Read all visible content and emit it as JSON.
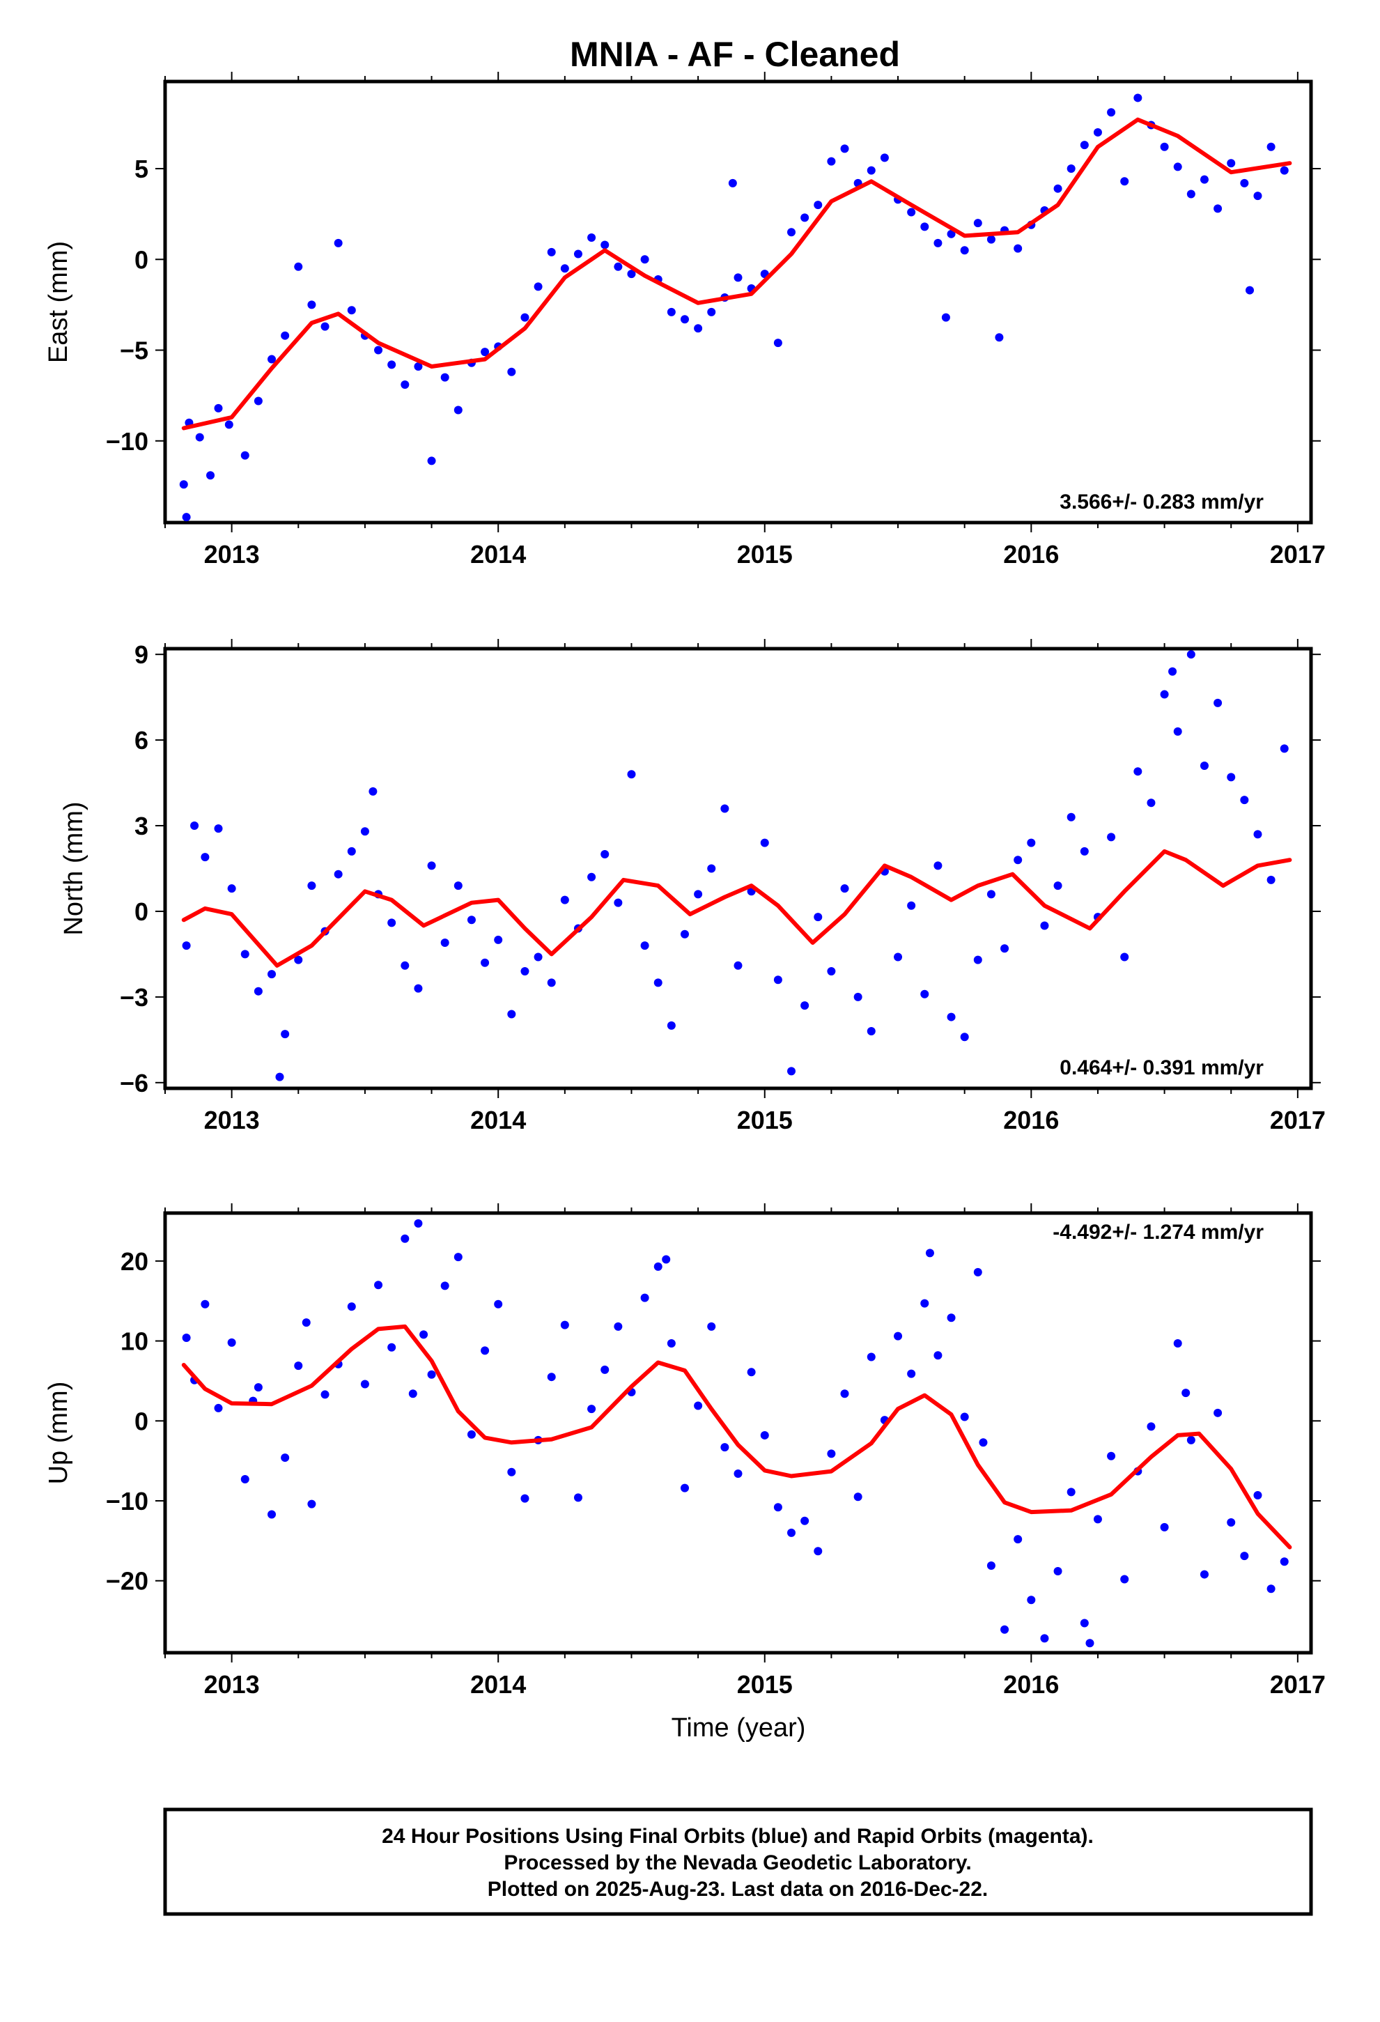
{
  "title": "MNIA  - AF - Cleaned",
  "xlabel": "Time (year)",
  "footer": {
    "line1": "24 Hour Positions Using Final Orbits (blue) and Rapid Orbits (magenta).",
    "line2": "Processed by the Nevada Geodetic Laboratory.",
    "line3": "Plotted on 2025-Aug-23. Last data on 2016-Dec-22."
  },
  "colors": {
    "points": "#0000ff",
    "fit": "#ff0000",
    "frame": "#000000"
  },
  "chart_data": [
    {
      "type": "scatter",
      "ylabel": "East (mm)",
      "rate": "3.566+/- 0.283 mm/yr",
      "xlim": [
        2012.75,
        2017.05
      ],
      "ylim": [
        -14.5,
        9.8
      ],
      "xticks": [
        2013,
        2014,
        2015,
        2016,
        2017
      ],
      "yticks": [
        -10,
        -5,
        0,
        5
      ],
      "ytick_labels": [
        "−10",
        "−5",
        "0",
        "5"
      ],
      "fit_curve": {
        "x": [
          2012.82,
          2013.0,
          2013.15,
          2013.3,
          2013.4,
          2013.55,
          2013.75,
          2013.95,
          2014.1,
          2014.25,
          2014.4,
          2014.55,
          2014.75,
          2014.95,
          2015.1,
          2015.25,
          2015.4,
          2015.55,
          2015.75,
          2015.95,
          2016.1,
          2016.25,
          2016.4,
          2016.55,
          2016.75,
          2016.97
        ],
        "y": [
          -9.3,
          -8.7,
          -6.0,
          -3.5,
          -3.0,
          -4.6,
          -5.9,
          -5.5,
          -3.8,
          -1.0,
          0.5,
          -0.9,
          -2.4,
          -1.9,
          0.3,
          3.2,
          4.3,
          3.0,
          1.3,
          1.5,
          3.0,
          6.2,
          7.7,
          6.8,
          4.8,
          5.3
        ]
      },
      "points": {
        "x": [
          2012.82,
          2012.83,
          2012.84,
          2012.88,
          2012.92,
          2012.95,
          2012.99,
          2013.05,
          2013.1,
          2013.15,
          2013.2,
          2013.25,
          2013.3,
          2013.35,
          2013.4,
          2013.45,
          2013.5,
          2013.55,
          2013.6,
          2013.65,
          2013.7,
          2013.75,
          2013.8,
          2013.85,
          2013.9,
          2013.95,
          2014.0,
          2014.05,
          2014.1,
          2014.15,
          2014.2,
          2014.25,
          2014.3,
          2014.35,
          2014.4,
          2014.45,
          2014.5,
          2014.55,
          2014.6,
          2014.65,
          2014.7,
          2014.75,
          2014.8,
          2014.85,
          2014.88,
          2014.9,
          2014.95,
          2015.0,
          2015.05,
          2015.1,
          2015.15,
          2015.2,
          2015.25,
          2015.3,
          2015.35,
          2015.4,
          2015.45,
          2015.5,
          2015.55,
          2015.6,
          2015.65,
          2015.68,
          2015.7,
          2015.75,
          2015.8,
          2015.85,
          2015.88,
          2015.9,
          2015.95,
          2016.0,
          2016.05,
          2016.1,
          2016.15,
          2016.2,
          2016.25,
          2016.3,
          2016.35,
          2016.4,
          2016.45,
          2016.5,
          2016.55,
          2016.6,
          2016.65,
          2016.7,
          2016.75,
          2016.8,
          2016.82,
          2016.85,
          2016.9,
          2016.95
        ],
        "y": [
          -12.4,
          -14.2,
          -9.0,
          -9.8,
          -11.9,
          -8.2,
          -9.1,
          -10.8,
          -7.8,
          -5.5,
          -4.2,
          -0.4,
          -2.5,
          -3.7,
          0.9,
          -2.8,
          -4.2,
          -5.0,
          -5.8,
          -6.9,
          -5.9,
          -11.1,
          -6.5,
          -8.3,
          -5.7,
          -5.1,
          -4.8,
          -6.2,
          -3.2,
          -1.5,
          0.4,
          -0.5,
          0.3,
          1.2,
          0.8,
          -0.4,
          -0.8,
          0.0,
          -1.1,
          -2.9,
          -3.3,
          -3.8,
          -2.9,
          -2.1,
          4.2,
          -1.0,
          -1.6,
          -0.8,
          -4.6,
          1.5,
          2.3,
          3.0,
          5.4,
          6.1,
          4.2,
          4.9,
          5.6,
          3.3,
          2.6,
          1.8,
          0.9,
          -3.2,
          1.4,
          0.5,
          2.0,
          1.1,
          -4.3,
          1.6,
          0.6,
          1.9,
          2.7,
          3.9,
          5.0,
          6.3,
          7.0,
          8.1,
          4.3,
          8.9,
          7.4,
          6.2,
          5.1,
          3.6,
          4.4,
          2.8,
          5.3,
          4.2,
          -1.7,
          3.5,
          6.2,
          4.9
        ]
      }
    },
    {
      "type": "scatter",
      "ylabel": "North (mm)",
      "rate": "0.464+/- 0.391 mm/yr",
      "xlim": [
        2012.75,
        2017.05
      ],
      "ylim": [
        -6.2,
        9.2
      ],
      "xticks": [
        2013,
        2014,
        2015,
        2016,
        2017
      ],
      "yticks": [
        -6,
        -3,
        0,
        3,
        6,
        9
      ],
      "ytick_labels": [
        "−6",
        "−3",
        "0",
        "3",
        "6",
        "9"
      ],
      "fit_curve": {
        "x": [
          2012.82,
          2012.9,
          2013.0,
          2013.17,
          2013.3,
          2013.5,
          2013.6,
          2013.72,
          2013.9,
          2014.0,
          2014.1,
          2014.2,
          2014.35,
          2014.47,
          2014.6,
          2014.72,
          2014.85,
          2014.95,
          2015.05,
          2015.18,
          2015.3,
          2015.45,
          2015.55,
          2015.7,
          2015.8,
          2015.93,
          2016.05,
          2016.22,
          2016.35,
          2016.5,
          2016.58,
          2016.72,
          2016.85,
          2016.97
        ],
        "y": [
          -0.3,
          0.1,
          -0.1,
          -1.9,
          -1.2,
          0.7,
          0.4,
          -0.5,
          0.3,
          0.4,
          -0.6,
          -1.5,
          -0.2,
          1.1,
          0.9,
          -0.1,
          0.5,
          0.9,
          0.2,
          -1.1,
          -0.1,
          1.6,
          1.2,
          0.4,
          0.9,
          1.3,
          0.2,
          -0.6,
          0.7,
          2.1,
          1.8,
          0.9,
          1.6,
          1.8
        ]
      },
      "points": {
        "x": [
          2012.83,
          2012.86,
          2012.9,
          2012.95,
          2013.0,
          2013.05,
          2013.1,
          2013.15,
          2013.18,
          2013.2,
          2013.25,
          2013.3,
          2013.35,
          2013.4,
          2013.45,
          2013.5,
          2013.53,
          2013.55,
          2013.6,
          2013.65,
          2013.7,
          2013.75,
          2013.8,
          2013.85,
          2013.9,
          2013.95,
          2014.0,
          2014.05,
          2014.1,
          2014.15,
          2014.2,
          2014.25,
          2014.3,
          2014.35,
          2014.4,
          2014.45,
          2014.5,
          2014.55,
          2014.6,
          2014.65,
          2014.7,
          2014.75,
          2014.8,
          2014.85,
          2014.9,
          2014.95,
          2015.0,
          2015.05,
          2015.1,
          2015.15,
          2015.2,
          2015.25,
          2015.3,
          2015.35,
          2015.4,
          2015.45,
          2015.5,
          2015.55,
          2015.6,
          2015.65,
          2015.7,
          2015.75,
          2015.8,
          2015.85,
          2015.9,
          2015.95,
          2016.0,
          2016.05,
          2016.1,
          2016.15,
          2016.2,
          2016.25,
          2016.3,
          2016.35,
          2016.4,
          2016.45,
          2016.5,
          2016.53,
          2016.55,
          2016.6,
          2016.65,
          2016.7,
          2016.75,
          2016.8,
          2016.85,
          2016.9,
          2016.95
        ],
        "y": [
          -1.2,
          3.0,
          1.9,
          2.9,
          0.8,
          -1.5,
          -2.8,
          -2.2,
          -5.8,
          -4.3,
          -1.7,
          0.9,
          -0.7,
          1.3,
          2.1,
          2.8,
          4.2,
          0.6,
          -0.4,
          -1.9,
          -2.7,
          1.6,
          -1.1,
          0.9,
          -0.3,
          -1.8,
          -1.0,
          -3.6,
          -2.1,
          -1.6,
          -2.5,
          0.4,
          -0.6,
          1.2,
          2.0,
          0.3,
          4.8,
          -1.2,
          -2.5,
          -4.0,
          -0.8,
          0.6,
          1.5,
          3.6,
          -1.9,
          0.7,
          2.4,
          -2.4,
          -5.6,
          -3.3,
          -0.2,
          -2.1,
          0.8,
          -3.0,
          -4.2,
          1.4,
          -1.6,
          0.2,
          -2.9,
          1.6,
          -3.7,
          -4.4,
          -1.7,
          0.6,
          -1.3,
          1.8,
          2.4,
          -0.5,
          0.9,
          3.3,
          2.1,
          -0.2,
          2.6,
          -1.6,
          4.9,
          3.8,
          7.6,
          8.4,
          6.3,
          9.0,
          5.1,
          7.3,
          4.7,
          3.9,
          2.7,
          1.1,
          5.7
        ]
      }
    },
    {
      "type": "scatter",
      "ylabel": "Up (mm)",
      "rate": "-4.492+/- 1.274 mm/yr",
      "xlim": [
        2012.75,
        2017.05
      ],
      "ylim": [
        -29,
        26
      ],
      "xticks": [
        2013,
        2014,
        2015,
        2016,
        2017
      ],
      "yticks": [
        -20,
        -10,
        0,
        10,
        20
      ],
      "ytick_labels": [
        "−20",
        "−10",
        "0",
        "10",
        "20"
      ],
      "fit_curve": {
        "x": [
          2012.82,
          2012.9,
          2013.0,
          2013.15,
          2013.3,
          2013.45,
          2013.55,
          2013.65,
          2013.75,
          2013.85,
          2013.95,
          2014.05,
          2014.2,
          2014.35,
          2014.5,
          2014.6,
          2014.7,
          2014.8,
          2014.9,
          2015.0,
          2015.1,
          2015.25,
          2015.4,
          2015.5,
          2015.6,
          2015.7,
          2015.8,
          2015.9,
          2016.0,
          2016.15,
          2016.3,
          2016.45,
          2016.55,
          2016.63,
          2016.75,
          2016.85,
          2016.97
        ],
        "y": [
          7.0,
          4.0,
          2.2,
          2.1,
          4.4,
          9.0,
          11.5,
          11.8,
          7.5,
          1.2,
          -2.1,
          -2.7,
          -2.3,
          -0.8,
          4.3,
          7.3,
          6.3,
          1.5,
          -3.0,
          -6.2,
          -6.9,
          -6.3,
          -2.8,
          1.5,
          3.2,
          0.8,
          -5.5,
          -10.2,
          -11.4,
          -11.2,
          -9.2,
          -4.5,
          -1.8,
          -1.6,
          -6.0,
          -11.6,
          -15.8
        ]
      },
      "points": {
        "x": [
          2012.83,
          2012.86,
          2012.9,
          2012.95,
          2013.0,
          2013.05,
          2013.08,
          2013.1,
          2013.15,
          2013.2,
          2013.25,
          2013.28,
          2013.3,
          2013.35,
          2013.4,
          2013.45,
          2013.5,
          2013.55,
          2013.6,
          2013.65,
          2013.68,
          2013.7,
          2013.72,
          2013.75,
          2013.8,
          2013.85,
          2013.9,
          2013.95,
          2014.0,
          2014.05,
          2014.1,
          2014.15,
          2014.2,
          2014.25,
          2014.3,
          2014.35,
          2014.4,
          2014.45,
          2014.5,
          2014.55,
          2014.6,
          2014.63,
          2014.65,
          2014.7,
          2014.75,
          2014.8,
          2014.85,
          2014.9,
          2014.95,
          2015.0,
          2015.05,
          2015.1,
          2015.15,
          2015.2,
          2015.25,
          2015.3,
          2015.35,
          2015.4,
          2015.45,
          2015.5,
          2015.55,
          2015.6,
          2015.62,
          2015.65,
          2015.7,
          2015.75,
          2015.8,
          2015.82,
          2015.85,
          2015.9,
          2015.95,
          2016.0,
          2016.05,
          2016.1,
          2016.15,
          2016.2,
          2016.22,
          2016.25,
          2016.3,
          2016.35,
          2016.4,
          2016.45,
          2016.5,
          2016.55,
          2016.58,
          2016.6,
          2016.65,
          2016.7,
          2016.75,
          2016.8,
          2016.85,
          2016.9,
          2016.95
        ],
        "y": [
          10.4,
          5.1,
          14.6,
          1.6,
          9.8,
          -7.3,
          2.5,
          4.2,
          -11.7,
          -4.6,
          6.9,
          12.3,
          -10.4,
          3.3,
          7.1,
          14.3,
          4.6,
          17.0,
          9.2,
          22.8,
          3.4,
          24.7,
          10.8,
          5.8,
          16.9,
          20.5,
          -1.7,
          8.8,
          14.6,
          -6.4,
          -9.7,
          -2.4,
          5.5,
          12.0,
          -9.6,
          1.5,
          6.4,
          11.8,
          3.6,
          15.4,
          19.3,
          20.2,
          9.7,
          -8.4,
          1.9,
          11.8,
          -3.3,
          -6.6,
          6.1,
          -1.8,
          -10.8,
          -14.0,
          -12.5,
          -16.3,
          -4.1,
          3.4,
          -9.5,
          8.0,
          0.1,
          10.6,
          5.9,
          14.7,
          21.0,
          8.2,
          12.9,
          0.5,
          18.6,
          -2.7,
          -18.1,
          -26.1,
          -14.8,
          -22.4,
          -27.2,
          -18.8,
          -8.9,
          -25.3,
          -27.8,
          -12.3,
          -4.4,
          -19.8,
          -6.3,
          -0.7,
          -13.3,
          9.7,
          3.5,
          -2.4,
          -19.2,
          1.0,
          -12.7,
          -16.9,
          -9.3,
          -21.0,
          -17.6
        ]
      }
    }
  ]
}
